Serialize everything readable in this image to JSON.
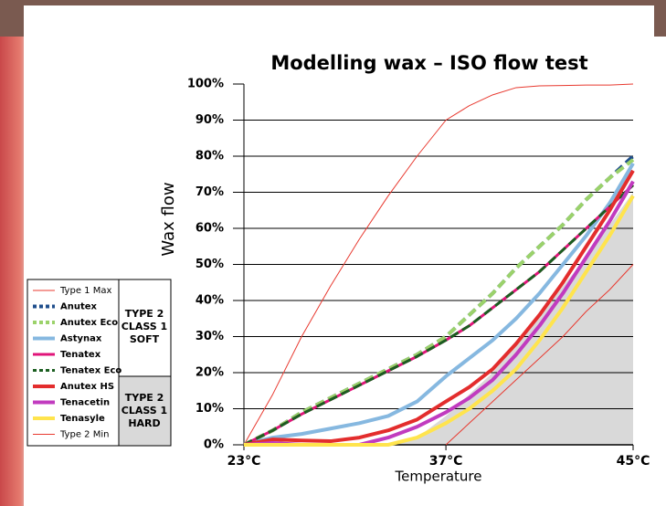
{
  "chart_data": {
    "type": "line",
    "title": "Modelling wax – ISO flow test",
    "x_label": "Temperature",
    "y_label": "Wax flow",
    "x": [
      23,
      25,
      27,
      29,
      31,
      33,
      35,
      37,
      38,
      39,
      40,
      41,
      42,
      43,
      44,
      45
    ],
    "xlim": [
      23,
      45
    ],
    "xticks": [
      {
        "value": 23,
        "label": "23°C"
      },
      {
        "value": 37,
        "label": "37°C"
      },
      {
        "value": 45,
        "label": "45°C"
      }
    ],
    "ylim": [
      0,
      100
    ],
    "yticks": [
      {
        "value": 0,
        "label": "0%"
      },
      {
        "value": 10,
        "label": "10%"
      },
      {
        "value": 20,
        "label": "20%"
      },
      {
        "value": 30,
        "label": "30%"
      },
      {
        "value": 40,
        "label": "40%"
      },
      {
        "value": 50,
        "label": "50%"
      },
      {
        "value": 60,
        "label": "60%"
      },
      {
        "value": 70,
        "label": "70%"
      },
      {
        "value": 80,
        "label": "80%"
      },
      {
        "value": 90,
        "label": "90%"
      },
      {
        "value": 100,
        "label": "100%"
      }
    ],
    "grid": true,
    "shaded_area": {
      "color": "#d9d9d9",
      "values": [
        0,
        0,
        0,
        0,
        0,
        0,
        2,
        8,
        14,
        20,
        28,
        36,
        44,
        52,
        61,
        70
      ]
    },
    "series": [
      {
        "name": "Type 1 Max",
        "color": "#e8392f",
        "width": 1,
        "dash": false,
        "values": [
          0,
          14,
          30,
          44,
          57,
          69,
          80,
          90,
          94,
          97,
          99,
          99.5,
          99.6,
          99.7,
          99.7,
          100
        ]
      },
      {
        "name": "Anutex",
        "color": "#1f4e8c",
        "width": 4,
        "dash": true,
        "values": [
          0,
          4,
          9,
          13,
          17,
          21,
          25,
          30,
          36,
          42,
          49,
          55,
          61,
          68,
          74,
          80
        ]
      },
      {
        "name": "Anutex Eco",
        "color": "#9bd26a",
        "width": 4,
        "dash": true,
        "values": [
          0,
          4,
          9,
          13,
          17,
          21,
          25,
          30,
          36,
          42,
          49,
          55,
          61,
          68,
          74,
          79
        ]
      },
      {
        "name": "Astynax",
        "color": "#86b8e0",
        "width": 4,
        "dash": false,
        "values": [
          0,
          2,
          3,
          4.5,
          6,
          8,
          12,
          19,
          24,
          29,
          35,
          42,
          50,
          58,
          67,
          78
        ]
      },
      {
        "name": "Tenatex",
        "color": "#e0157a",
        "width": 3,
        "dash": false,
        "values": [
          0,
          4,
          8.5,
          12.5,
          16.5,
          20.5,
          24.5,
          29,
          33,
          38,
          43,
          48,
          54,
          60,
          66,
          72
        ]
      },
      {
        "name": "Tenatex Eco",
        "color": "#1b5e20",
        "width": 3,
        "dash": true,
        "values": [
          0,
          4,
          8.5,
          12.5,
          16.5,
          20.5,
          24.5,
          29,
          33,
          38,
          43,
          48,
          54,
          60,
          66,
          72
        ]
      },
      {
        "name": "Anutex HS",
        "color": "#e32d2d",
        "width": 4,
        "dash": false,
        "values": [
          0,
          1.5,
          1.2,
          1,
          2,
          4,
          7,
          12,
          16,
          21,
          28,
          36,
          45,
          55,
          65,
          76
        ]
      },
      {
        "name": "Tenacetin",
        "color": "#c13bbf",
        "width": 4,
        "dash": false,
        "values": [
          0,
          0.5,
          0,
          0,
          0,
          2,
          5,
          9,
          13,
          18,
          25,
          33,
          42,
          52,
          62,
          73
        ]
      },
      {
        "name": "Tenasyle",
        "color": "#ffe44d",
        "width": 4,
        "dash": false,
        "values": [
          0,
          0,
          0,
          0,
          0,
          0,
          2,
          6,
          10,
          15,
          21,
          29,
          38,
          48,
          58,
          69
        ]
      },
      {
        "name": "Type 2 Min",
        "color": "#e8392f",
        "width": 1,
        "dash": false,
        "values": [
          null,
          null,
          null,
          null,
          null,
          null,
          null,
          0,
          6,
          12,
          18,
          24,
          30,
          37,
          43,
          50
        ]
      }
    ],
    "legend_groups": [
      {
        "label": "TYPE 2\nCLASS 1\nSOFT"
      },
      {
        "label": "TYPE 2\nCLASS 1\nHARD"
      }
    ]
  }
}
